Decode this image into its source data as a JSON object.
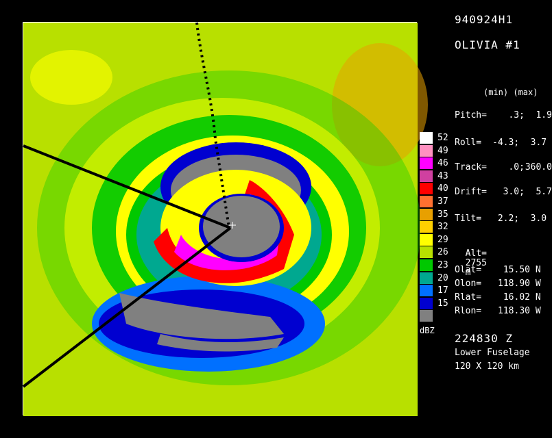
{
  "header": {
    "flight_id": "940924H1",
    "storm_name": "OLIVIA #1",
    "minmax_header": "(min) (max)"
  },
  "parameters": [
    {
      "label": "Pitch=",
      "min": ".3;",
      "max": "1.9"
    },
    {
      "label": "Roll=",
      "min": "-4.3;",
      "max": "3.7"
    },
    {
      "label": "Track=",
      "min": ".0;",
      "max": "360.0"
    },
    {
      "label": "Drift=",
      "min": "3.0;",
      "max": "5.7"
    },
    {
      "label": "Tilt=",
      "min": "2.2;",
      "max": "3.0"
    }
  ],
  "altitude": {
    "label": "Alt=",
    "value": "2755",
    "unit": "m"
  },
  "positions": [
    {
      "label": "Olat=",
      "value": "15.50",
      "dir": "N"
    },
    {
      "label": "Olon=",
      "value": "118.90",
      "dir": "W"
    },
    {
      "label": "Rlat=",
      "value": "16.02",
      "dir": "N"
    },
    {
      "label": "Rlon=",
      "value": "118.30",
      "dir": "W"
    }
  ],
  "footer": {
    "time": "224830 Z",
    "radar": "Lower Fuselage",
    "domain": "120 X 120 km"
  },
  "color_scale": {
    "unit": "dBZ",
    "levels": [
      {
        "label": "52",
        "color": "#ffffff"
      },
      {
        "label": "49",
        "color": "#ff90c0"
      },
      {
        "label": "46",
        "color": "#ff00ff"
      },
      {
        "label": "43",
        "color": "#d040a0"
      },
      {
        "label": "40",
        "color": "#ff0000"
      },
      {
        "label": "37",
        "color": "#ff7030"
      },
      {
        "label": "35",
        "color": "#e8a000"
      },
      {
        "label": "32",
        "color": "#ffd000"
      },
      {
        "label": "29",
        "color": "#ffff00"
      },
      {
        "label": "26",
        "color": "#b8e000"
      },
      {
        "label": "23",
        "color": "#00c800"
      },
      {
        "label": "20",
        "color": "#00a890"
      },
      {
        "label": "17",
        "color": "#0070ff"
      },
      {
        "label": "15",
        "color": "#0000d0"
      },
      {
        "label": "",
        "color": "#808080"
      }
    ]
  }
}
